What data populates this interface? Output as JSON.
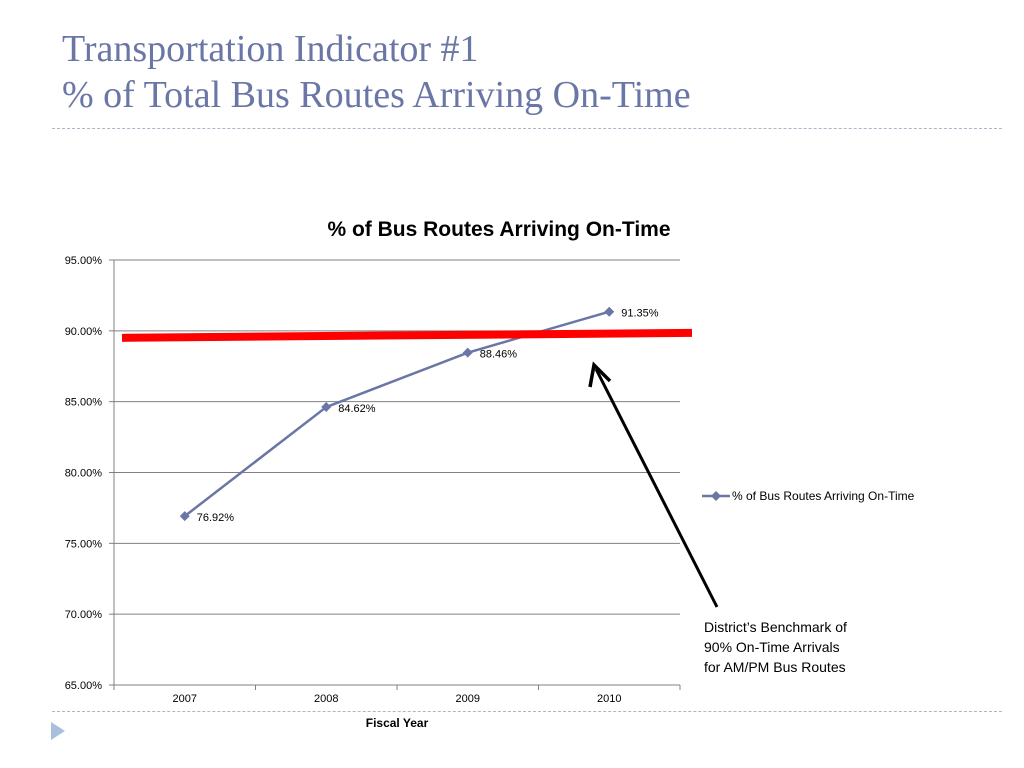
{
  "slide": {
    "title_line1": "Transportation Indicator #1",
    "title_line2": "% of Total Bus Routes Arriving On-Time"
  },
  "annotation": {
    "line1": "District’s Benchmark of",
    "line2": "90% On-Time Arrivals",
    "line3": "for AM/PM Bus Routes"
  },
  "colors": {
    "series": "#6a76a5",
    "benchmark": "#ff0000",
    "title": "#6a76a5",
    "grid": "#808080"
  },
  "chart_data": {
    "type": "line",
    "title": "% of Bus Routes Arriving On-Time",
    "xlabel": "Fiscal Year",
    "ylabel": "",
    "categories": [
      "2007",
      "2008",
      "2009",
      "2010"
    ],
    "series": [
      {
        "name": "% of Bus Routes Arriving On-Time",
        "values": [
          76.92,
          84.62,
          88.46,
          91.35
        ],
        "labels": [
          "76.92%",
          "84.62%",
          "88.46%",
          "91.35%"
        ]
      }
    ],
    "ylim": [
      65,
      95
    ],
    "yticks": [
      65,
      70,
      75,
      80,
      85,
      90,
      95
    ],
    "ytick_labels": [
      "65.00%",
      "70.00%",
      "75.00%",
      "80.00%",
      "85.00%",
      "90.00%",
      "95.00%"
    ],
    "grid": true,
    "legend": "right",
    "benchmark": {
      "value": 90,
      "marker": "diamond"
    }
  }
}
